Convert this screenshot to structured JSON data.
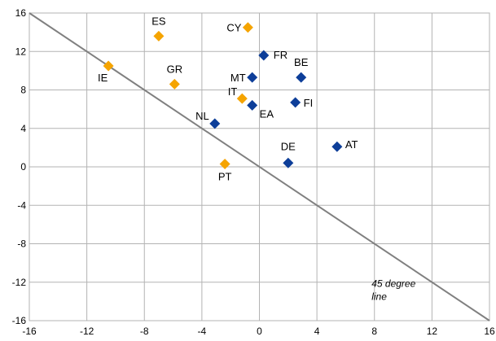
{
  "chart_data": {
    "type": "scatter",
    "title": "",
    "xlabel": "",
    "ylabel": "",
    "xlim": [
      -16,
      16
    ],
    "ylim": [
      -16,
      16
    ],
    "x_ticks": [
      -16,
      -12,
      -8,
      -4,
      0,
      4,
      8,
      12,
      16
    ],
    "y_ticks": [
      -16,
      -12,
      -8,
      -4,
      0,
      4,
      8,
      12,
      16
    ],
    "grid": true,
    "reference_line": {
      "label": [
        "45 degree",
        "line"
      ],
      "from": [
        -16,
        16
      ],
      "to": [
        16,
        -16
      ],
      "color": "#808080"
    },
    "series": [
      {
        "color": "#F5A400",
        "marker": "diamond",
        "points": [
          {
            "label": "ES",
            "x": -7.0,
            "y": 13.6
          },
          {
            "label": "CY",
            "x": -0.8,
            "y": 14.5
          },
          {
            "label": "IE",
            "x": -10.5,
            "y": 10.5
          },
          {
            "label": "GR",
            "x": -5.9,
            "y": 8.6
          },
          {
            "label": "IT",
            "x": -1.2,
            "y": 7.1
          },
          {
            "label": "PT",
            "x": -2.4,
            "y": 0.3
          }
        ]
      },
      {
        "color": "#0D3E99",
        "marker": "diamond",
        "points": [
          {
            "label": "FR",
            "x": 0.3,
            "y": 11.6
          },
          {
            "label": "BE",
            "x": 2.9,
            "y": 9.3
          },
          {
            "label": "MT",
            "x": -0.5,
            "y": 9.3
          },
          {
            "label": "EA",
            "x": -0.5,
            "y": 6.4
          },
          {
            "label": "FI",
            "x": 2.5,
            "y": 6.7
          },
          {
            "label": "NL",
            "x": -3.1,
            "y": 4.5
          },
          {
            "label": "DE",
            "x": 2.0,
            "y": 0.4
          },
          {
            "label": "AT",
            "x": 5.4,
            "y": 2.1
          }
        ]
      }
    ]
  }
}
